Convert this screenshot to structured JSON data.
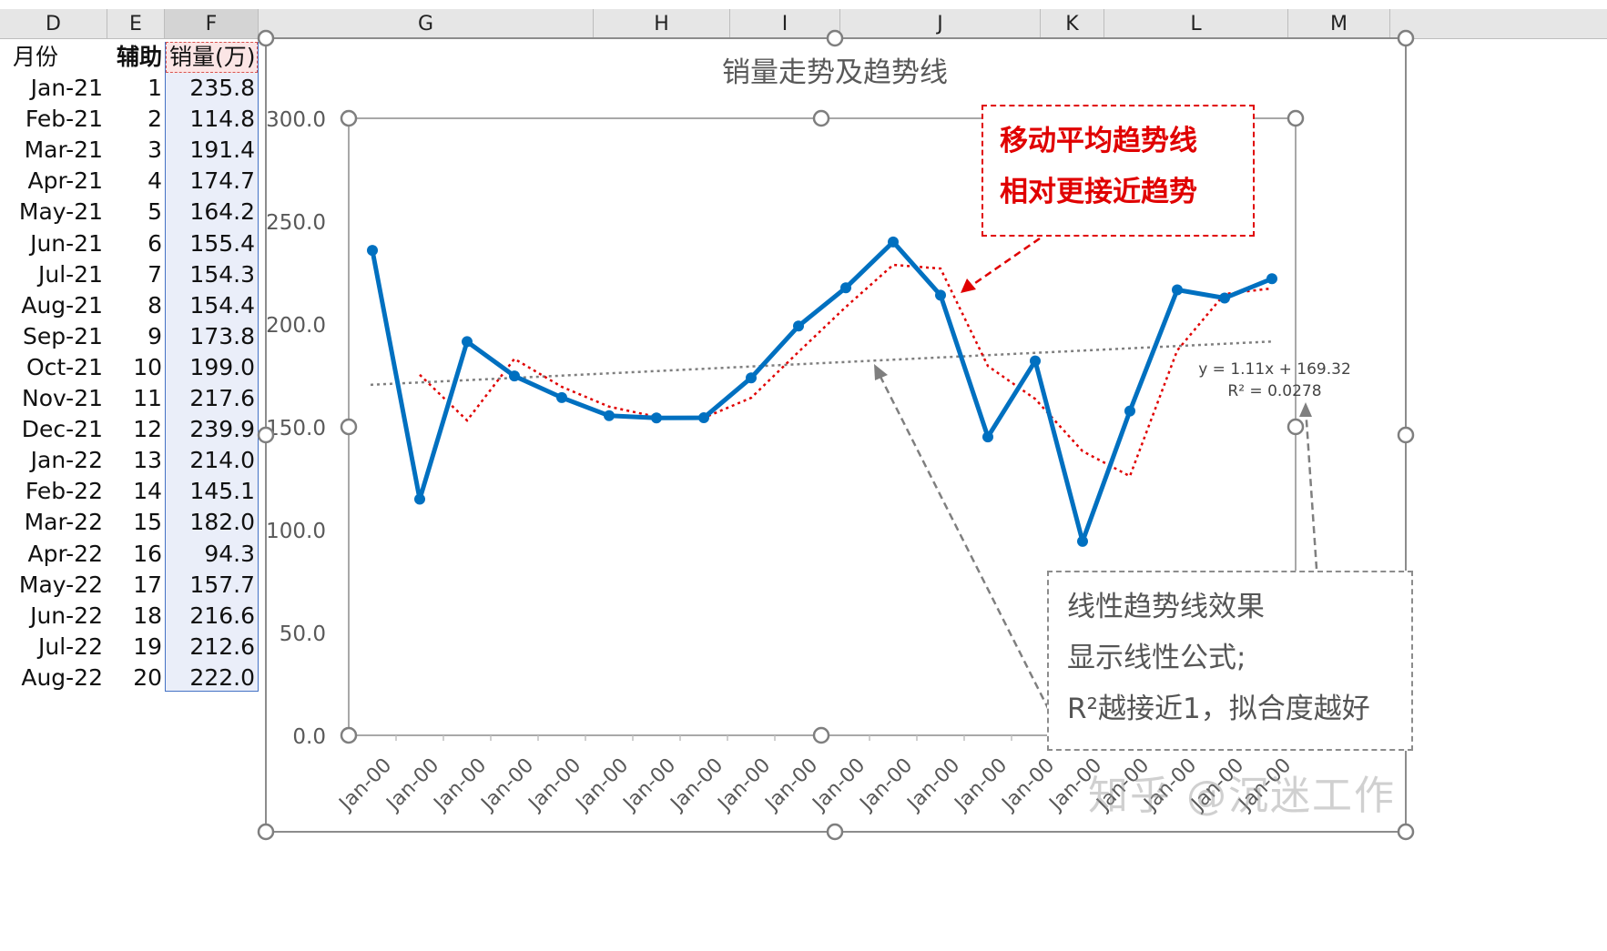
{
  "spreadsheet": {
    "columns": [
      "D",
      "E",
      "F",
      "G",
      "H",
      "I",
      "J",
      "K",
      "L",
      "M"
    ],
    "headers": {
      "month": "月份",
      "index": "辅助",
      "sales": "销量(万)"
    },
    "rows": [
      {
        "month": "Jan-21",
        "idx": "1",
        "val": "235.8"
      },
      {
        "month": "Feb-21",
        "idx": "2",
        "val": "114.8"
      },
      {
        "month": "Mar-21",
        "idx": "3",
        "val": "191.4"
      },
      {
        "month": "Apr-21",
        "idx": "4",
        "val": "174.7"
      },
      {
        "month": "May-21",
        "idx": "5",
        "val": "164.2"
      },
      {
        "month": "Jun-21",
        "idx": "6",
        "val": "155.4"
      },
      {
        "month": "Jul-21",
        "idx": "7",
        "val": "154.3"
      },
      {
        "month": "Aug-21",
        "idx": "8",
        "val": "154.4"
      },
      {
        "month": "Sep-21",
        "idx": "9",
        "val": "173.8"
      },
      {
        "month": "Oct-21",
        "idx": "10",
        "val": "199.0"
      },
      {
        "month": "Nov-21",
        "idx": "11",
        "val": "217.6"
      },
      {
        "month": "Dec-21",
        "idx": "12",
        "val": "239.9"
      },
      {
        "month": "Jan-22",
        "idx": "13",
        "val": "214.0"
      },
      {
        "month": "Feb-22",
        "idx": "14",
        "val": "145.1"
      },
      {
        "month": "Mar-22",
        "idx": "15",
        "val": "182.0"
      },
      {
        "month": "Apr-22",
        "idx": "16",
        "val": "94.3"
      },
      {
        "month": "May-22",
        "idx": "17",
        "val": "157.7"
      },
      {
        "month": "Jun-22",
        "idx": "18",
        "val": "216.6"
      },
      {
        "month": "Jul-22",
        "idx": "19",
        "val": "212.6"
      },
      {
        "month": "Aug-22",
        "idx": "20",
        "val": "222.0"
      }
    ]
  },
  "chart_data": {
    "type": "line",
    "title": "销量走势及趋势线",
    "x_tick_label": "Jan-00",
    "x": [
      1,
      2,
      3,
      4,
      5,
      6,
      7,
      8,
      9,
      10,
      11,
      12,
      13,
      14,
      15,
      16,
      17,
      18,
      19,
      20
    ],
    "ylim": [
      0,
      300
    ],
    "yticks": [
      "0.0",
      "50.0",
      "100.0",
      "150.0",
      "200.0",
      "250.0",
      "300.0"
    ],
    "grid": false,
    "series": [
      {
        "values": [
          235.8,
          114.8,
          191.4,
          174.7,
          164.2,
          155.4,
          154.3,
          154.4,
          173.8,
          199.0,
          217.6,
          239.9,
          214.0,
          145.1,
          182.0,
          94.3,
          157.7,
          216.6,
          212.6,
          222.0
        ],
        "color": "#0070c0",
        "style": "solid-marker"
      },
      {
        "values": [
          null,
          175.3,
          153.1,
          183.05,
          169.45,
          159.8,
          154.85,
          154.35,
          164.1,
          186.4,
          208.3,
          228.75,
          226.95,
          179.55,
          163.55,
          138.15,
          126.0,
          187.15,
          214.6,
          217.3
        ],
        "color": "#e00000",
        "style": "dotted"
      },
      {
        "slope": 1.11,
        "intercept": 169.32,
        "color": "#7f7f7f",
        "style": "dotted"
      }
    ],
    "equation": {
      "line1": "y = 1.11x + 169.32",
      "line2": "R² = 0.0278"
    }
  },
  "callouts": {
    "moving_avg": {
      "line1": "移动平均趋势线",
      "line2": "相对更接近趋势",
      "color": "#e00000"
    },
    "linear": {
      "line1": "线性趋势线效果",
      "line2": "显示线性公式;",
      "line3": "R²越接近1，拟合度越好",
      "color": "#7f7f7f"
    }
  },
  "watermark": "知乎 @沉迷工作"
}
